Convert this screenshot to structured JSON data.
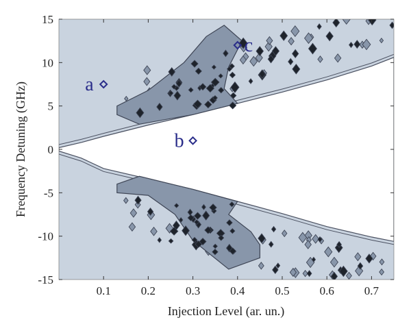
{
  "chart_data": {
    "type": "contour",
    "xlabel": "Injection Level (ar. un.)",
    "ylabel": "Frequency Detuning (GHz)",
    "xlim": [
      0.0,
      0.75
    ],
    "ylim": [
      -15,
      15
    ],
    "x_ticks": [
      0.1,
      0.2,
      0.3,
      0.4,
      0.5,
      0.6,
      0.7
    ],
    "y_ticks": [
      -15,
      -10,
      -5,
      0,
      5,
      10,
      15
    ],
    "regions": [
      {
        "level": "background",
        "color": "#c9d3df"
      },
      {
        "level": "locking",
        "color": "#ffffff",
        "boundary_upper": [
          [
            0.0,
            0.2
          ],
          [
            0.05,
            0.8
          ],
          [
            0.1,
            1.5
          ],
          [
            0.2,
            2.8
          ],
          [
            0.3,
            4.0
          ],
          [
            0.4,
            5.3
          ],
          [
            0.5,
            6.6
          ],
          [
            0.6,
            8.0
          ],
          [
            0.7,
            9.6
          ],
          [
            0.75,
            10.6
          ]
        ],
        "boundary_lower": [
          [
            0.0,
            -0.2
          ],
          [
            0.05,
            -1.0
          ],
          [
            0.1,
            -2.2
          ],
          [
            0.2,
            -3.4
          ],
          [
            0.3,
            -4.6
          ],
          [
            0.4,
            -6.0
          ],
          [
            0.5,
            -7.4
          ],
          [
            0.6,
            -8.9
          ],
          [
            0.7,
            -10.1
          ],
          [
            0.75,
            -10.6
          ]
        ]
      },
      {
        "level": "high",
        "color": "#8896aa",
        "upper_polygon": [
          [
            0.13,
            4.0
          ],
          [
            0.18,
            2.9
          ],
          [
            0.3,
            4.0
          ],
          [
            0.4,
            5.3
          ],
          [
            0.37,
            7.0
          ],
          [
            0.38,
            9.5
          ],
          [
            0.41,
            12.5
          ],
          [
            0.37,
            14.3
          ],
          [
            0.33,
            13.0
          ],
          [
            0.28,
            10.0
          ],
          [
            0.2,
            6.8
          ],
          [
            0.13,
            5.0
          ]
        ],
        "lower_polygon": [
          [
            0.13,
            -4.0
          ],
          [
            0.18,
            -3.1
          ],
          [
            0.3,
            -4.6
          ],
          [
            0.4,
            -6.0
          ],
          [
            0.38,
            -7.5
          ],
          [
            0.43,
            -9.5
          ],
          [
            0.45,
            -11.0
          ],
          [
            0.45,
            -12.5
          ],
          [
            0.38,
            -13.8
          ],
          [
            0.3,
            -10.5
          ],
          [
            0.26,
            -7.5
          ],
          [
            0.2,
            -5.3
          ],
          [
            0.13,
            -5.0
          ]
        ]
      }
    ],
    "marked_points": [
      {
        "label": "a",
        "x": 0.1,
        "y": 7.5
      },
      {
        "label": "b",
        "x": 0.3,
        "y": 1.0
      },
      {
        "label": "c",
        "x": 0.4,
        "y": 12.0
      }
    ],
    "colors": {
      "background": "#c9d3df",
      "mid": "#8896aa",
      "high": "#1e232b",
      "contour_line": "#4a5060",
      "marker": "#2a2d8a"
    }
  }
}
